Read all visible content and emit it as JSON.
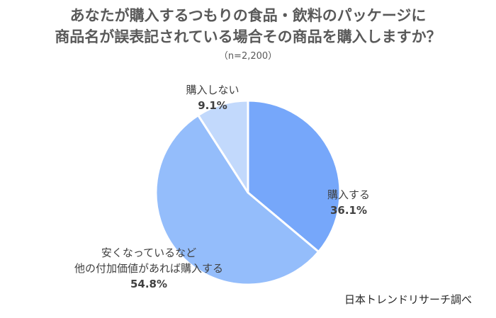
{
  "chart_data": {
    "type": "pie",
    "title_lines": [
      "あなたが購入するつもりの食品・飲料のパッケージに",
      "商品名が誤表記されている場合その商品を購入しますか？"
    ],
    "subtitle": "（n=2,200）",
    "slices": [
      {
        "label": "購入する",
        "value": 36.1,
        "value_label": "36.1%",
        "color": "#76a7fa"
      },
      {
        "label_lines": [
          "安くなっているなど",
          "他の付加価値があれば購入する"
        ],
        "value": 54.8,
        "value_label": "54.8%",
        "color": "#94bdfb"
      },
      {
        "label": "購入しない",
        "value": 9.1,
        "value_label": "9.1%",
        "color": "#c2d9fc"
      }
    ],
    "source": "日本トレンドリサーチ調べ"
  }
}
